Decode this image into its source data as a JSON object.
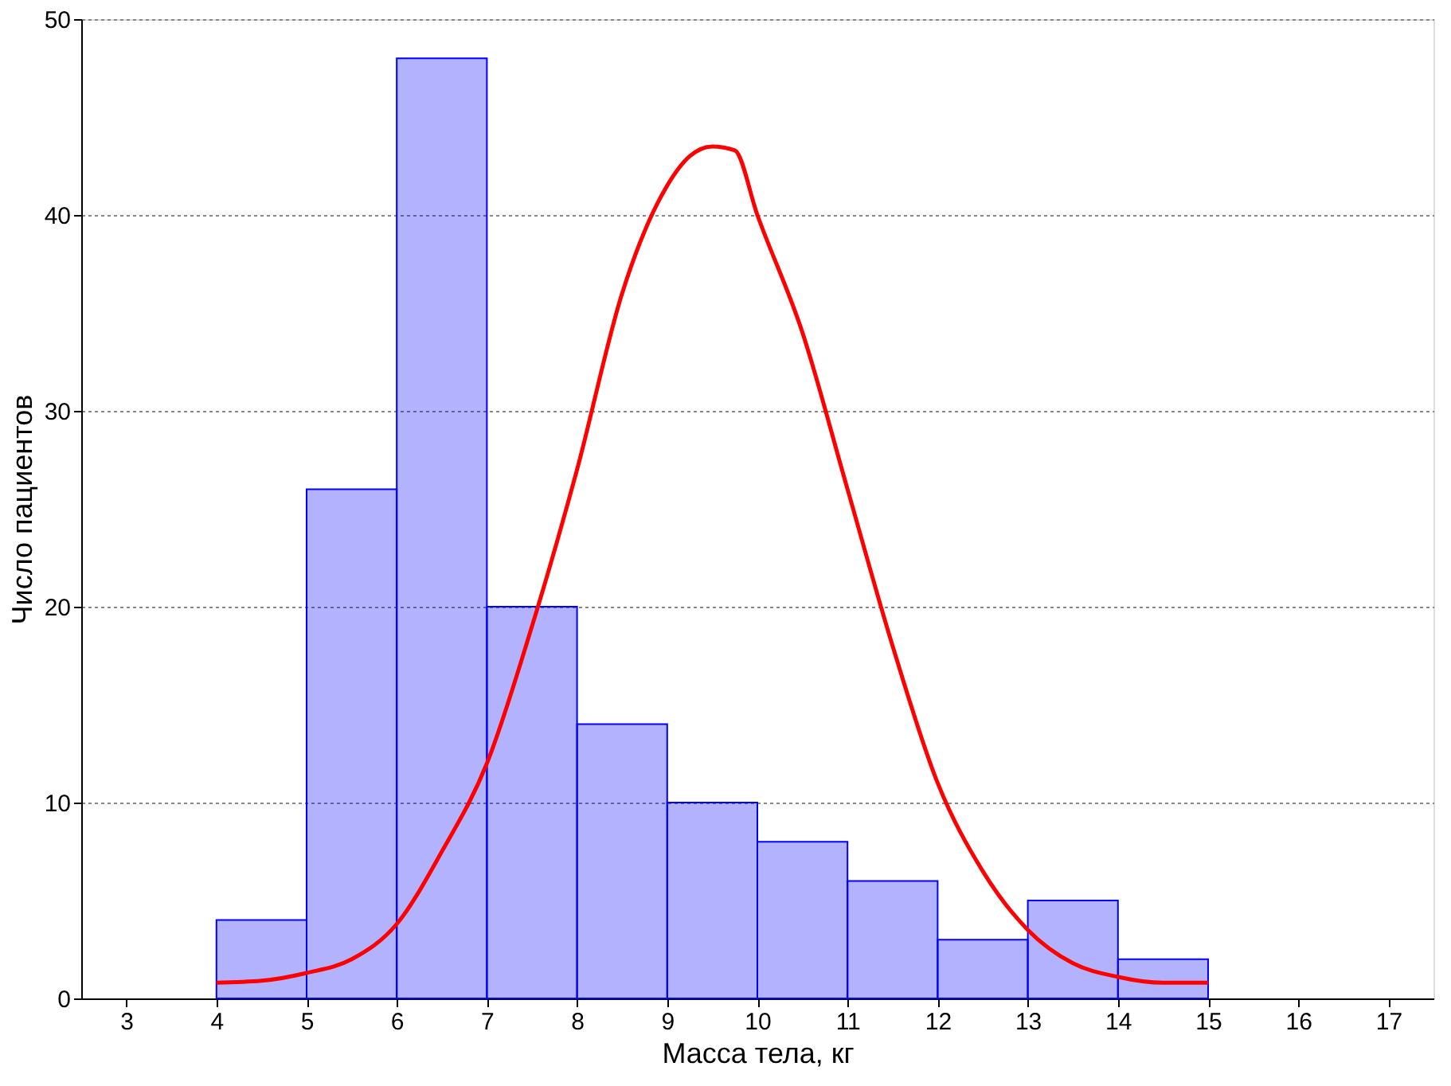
{
  "chart_data": {
    "type": "histogram",
    "xlabel": "Масса тела, кг",
    "ylabel": "Число пациентов",
    "bins": [
      4,
      5,
      6,
      7,
      8,
      9,
      10,
      11,
      12,
      13,
      14,
      15
    ],
    "values": [
      4,
      26,
      48,
      20,
      14,
      10,
      8,
      6,
      3,
      5,
      2
    ],
    "color": "#0000ff",
    "series": [
      {
        "type": "line",
        "color": "#ff0000",
        "x": [
          4,
          4.5,
          5,
          5.5,
          6,
          6.5,
          7,
          7.5,
          8,
          8.5,
          9,
          9.25,
          9.5,
          9.75,
          10,
          10.5,
          11,
          11.5,
          12,
          12.5,
          13,
          13.5,
          14,
          14.5,
          15
        ],
        "values": [
          0.8,
          0.9,
          1.3,
          2,
          3.8,
          7.5,
          12,
          19,
          27,
          36,
          41.5,
          43,
          43.5,
          43.3,
          40,
          34,
          26,
          18,
          11,
          6.5,
          3.5,
          1.8,
          1.1,
          0.8,
          0.8
        ]
      }
    ],
    "xlim": [
      2.5,
      17.5
    ],
    "xticks": [
      3,
      4,
      5,
      6,
      7,
      8,
      9,
      10,
      11,
      12,
      13,
      14,
      15,
      16,
      17
    ],
    "ylim": [
      0,
      50
    ],
    "yticks": [
      0,
      10,
      20,
      30,
      40,
      50
    ],
    "grid": "y"
  }
}
